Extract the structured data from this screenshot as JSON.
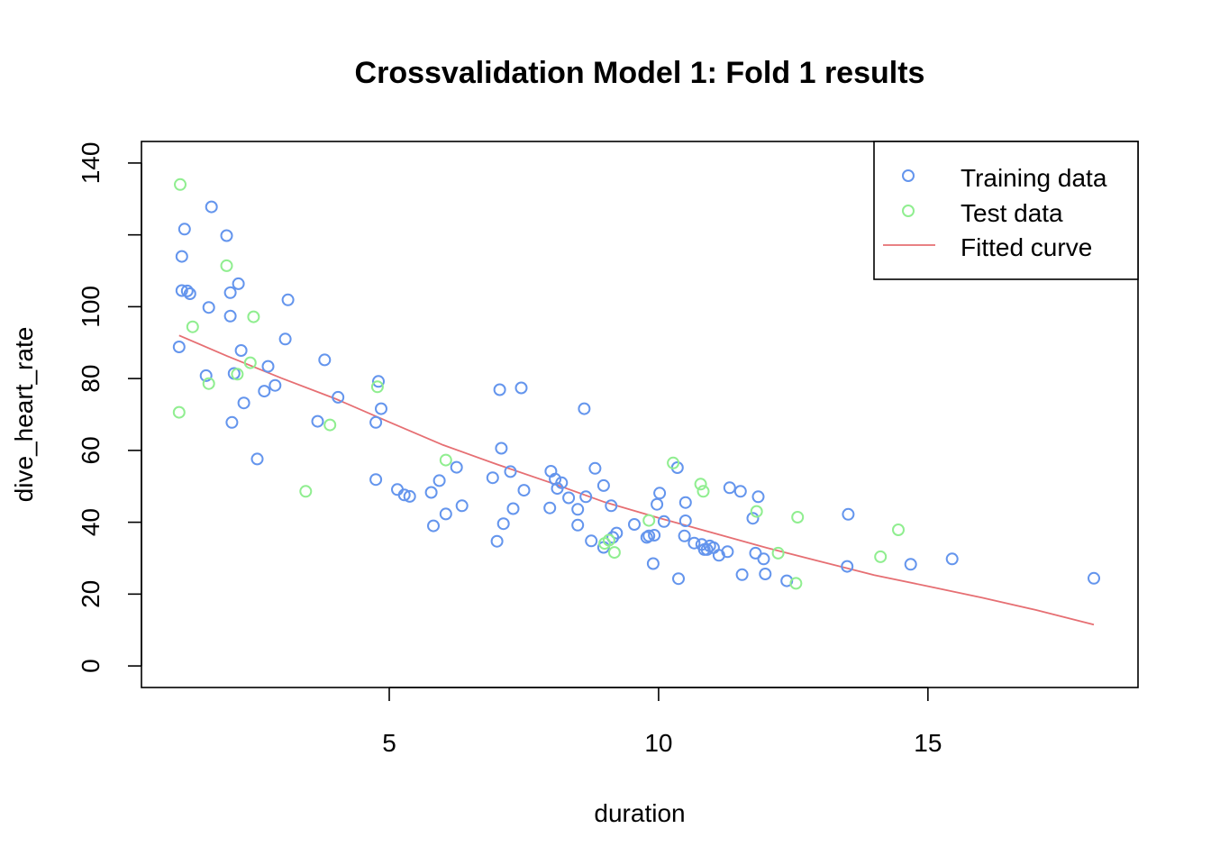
{
  "chart_data": {
    "type": "scatter",
    "title": "Crossvalidation Model 1: Fold 1 results",
    "xlabel": "duration",
    "ylabel": "dive_heart_rate",
    "xlim": [
      0.4,
      18.9
    ],
    "ylim": [
      -6,
      146
    ],
    "x_ticks": [
      5,
      10,
      15
    ],
    "y_ticks": [
      0,
      20,
      40,
      60,
      80,
      100,
      120,
      140
    ],
    "y_tick_labels": [
      "0",
      "20",
      "40",
      "60",
      "80",
      "100",
      "",
      "140"
    ],
    "grid": false,
    "legend_position": "top-right",
    "colors": {
      "training": "#6495ED",
      "test": "#90EE90",
      "fitted": "#E66F73"
    },
    "series": [
      {
        "name": "Training data",
        "kind": "points",
        "points": [
          [
            1.1,
            88.8
          ],
          [
            1.15,
            114
          ],
          [
            1.15,
            104.5
          ],
          [
            1.2,
            121.6
          ],
          [
            1.25,
            104.4
          ],
          [
            1.3,
            103.6
          ],
          [
            1.6,
            80.8
          ],
          [
            1.65,
            99.8
          ],
          [
            1.7,
            127.8
          ],
          [
            1.98,
            119.8
          ],
          [
            2.05,
            97.4
          ],
          [
            2.05,
            103.9
          ],
          [
            2.08,
            67.8
          ],
          [
            2.12,
            81.4
          ],
          [
            2.2,
            106.4
          ],
          [
            2.25,
            87.8
          ],
          [
            2.3,
            73.2
          ],
          [
            2.55,
            57.6
          ],
          [
            2.68,
            76.5
          ],
          [
            2.75,
            83.4
          ],
          [
            2.88,
            78.1
          ],
          [
            3.07,
            91.0
          ],
          [
            3.12,
            101.9
          ],
          [
            3.67,
            68.1
          ],
          [
            3.8,
            85.2
          ],
          [
            4.05,
            74.8
          ],
          [
            4.75,
            67.8
          ],
          [
            4.75,
            51.9
          ],
          [
            4.8,
            79.2
          ],
          [
            4.85,
            71.6
          ],
          [
            5.15,
            49.1
          ],
          [
            5.28,
            47.6
          ],
          [
            5.38,
            47.2
          ],
          [
            5.78,
            48.3
          ],
          [
            5.82,
            39.0
          ],
          [
            5.93,
            51.6
          ],
          [
            6.05,
            42.3
          ],
          [
            6.25,
            55.3
          ],
          [
            6.35,
            44.6
          ],
          [
            6.92,
            52.4
          ],
          [
            7.0,
            34.7
          ],
          [
            7.05,
            76.9
          ],
          [
            7.08,
            60.6
          ],
          [
            7.12,
            39.6
          ],
          [
            7.25,
            54.1
          ],
          [
            7.3,
            43.8
          ],
          [
            7.45,
            77.4
          ],
          [
            7.5,
            48.9
          ],
          [
            7.98,
            44.0
          ],
          [
            8.0,
            54.2
          ],
          [
            8.08,
            52.0
          ],
          [
            8.12,
            49.4
          ],
          [
            8.2,
            51.0
          ],
          [
            8.33,
            46.8
          ],
          [
            8.5,
            39.2
          ],
          [
            8.5,
            43.6
          ],
          [
            8.62,
            71.6
          ],
          [
            8.65,
            47.1
          ],
          [
            8.75,
            34.8
          ],
          [
            8.82,
            55.0
          ],
          [
            8.98,
            50.2
          ],
          [
            8.98,
            33.0
          ],
          [
            9.12,
            44.6
          ],
          [
            9.15,
            35.8
          ],
          [
            9.22,
            37.0
          ],
          [
            9.55,
            39.4
          ],
          [
            9.78,
            35.8
          ],
          [
            9.82,
            36.2
          ],
          [
            9.9,
            28.5
          ],
          [
            9.92,
            36.4
          ],
          [
            9.97,
            45.0
          ],
          [
            10.02,
            48.1
          ],
          [
            10.1,
            40.2
          ],
          [
            10.35,
            55.2
          ],
          [
            10.37,
            24.3
          ],
          [
            10.48,
            36.2
          ],
          [
            10.5,
            40.4
          ],
          [
            10.5,
            45.5
          ],
          [
            10.66,
            34.2
          ],
          [
            10.8,
            33.8
          ],
          [
            10.85,
            32.4
          ],
          [
            10.9,
            32.4
          ],
          [
            10.95,
            33.4
          ],
          [
            11.02,
            32.9
          ],
          [
            11.12,
            30.8
          ],
          [
            11.28,
            31.8
          ],
          [
            11.32,
            49.6
          ],
          [
            11.52,
            48.6
          ],
          [
            11.55,
            25.4
          ],
          [
            11.75,
            41.1
          ],
          [
            11.8,
            31.4
          ],
          [
            11.85,
            47.1
          ],
          [
            11.95,
            29.8
          ],
          [
            11.98,
            25.6
          ],
          [
            12.38,
            23.7
          ],
          [
            13.5,
            27.7
          ],
          [
            13.52,
            42.2
          ],
          [
            14.68,
            28.3
          ],
          [
            15.45,
            29.8
          ],
          [
            18.08,
            24.4
          ]
        ]
      },
      {
        "name": "Test data",
        "kind": "points",
        "points": [
          [
            1.1,
            70.6
          ],
          [
            1.12,
            134.0
          ],
          [
            1.35,
            94.4
          ],
          [
            1.65,
            78.6
          ],
          [
            1.98,
            111.4
          ],
          [
            2.18,
            81.2
          ],
          [
            2.42,
            84.4
          ],
          [
            2.48,
            97.2
          ],
          [
            3.45,
            48.6
          ],
          [
            3.9,
            67.1
          ],
          [
            4.78,
            77.7
          ],
          [
            6.05,
            57.3
          ],
          [
            9.0,
            34.1
          ],
          [
            9.08,
            35.0
          ],
          [
            9.18,
            31.6
          ],
          [
            9.82,
            40.5
          ],
          [
            10.27,
            56.5
          ],
          [
            10.78,
            50.6
          ],
          [
            10.83,
            48.6
          ],
          [
            11.82,
            43.0
          ],
          [
            12.22,
            31.4
          ],
          [
            12.55,
            23.0
          ],
          [
            12.58,
            41.4
          ],
          [
            14.12,
            30.4
          ],
          [
            14.45,
            37.9
          ]
        ]
      },
      {
        "name": "Fitted curve",
        "kind": "line",
        "points": [
          [
            1.1,
            92.0
          ],
          [
            2,
            86.2
          ],
          [
            3,
            80.1
          ],
          [
            4,
            74.4
          ],
          [
            5,
            67.9
          ],
          [
            6,
            61.5
          ],
          [
            7,
            56.1
          ],
          [
            8,
            51.0
          ],
          [
            9,
            45.6
          ],
          [
            10,
            41.2
          ],
          [
            11,
            37.1
          ],
          [
            12,
            32.9
          ],
          [
            13,
            29.1
          ],
          [
            14,
            25.3
          ],
          [
            15,
            22.2
          ],
          [
            16,
            19.0
          ],
          [
            17,
            15.6
          ],
          [
            18.08,
            11.5
          ]
        ]
      }
    ]
  }
}
